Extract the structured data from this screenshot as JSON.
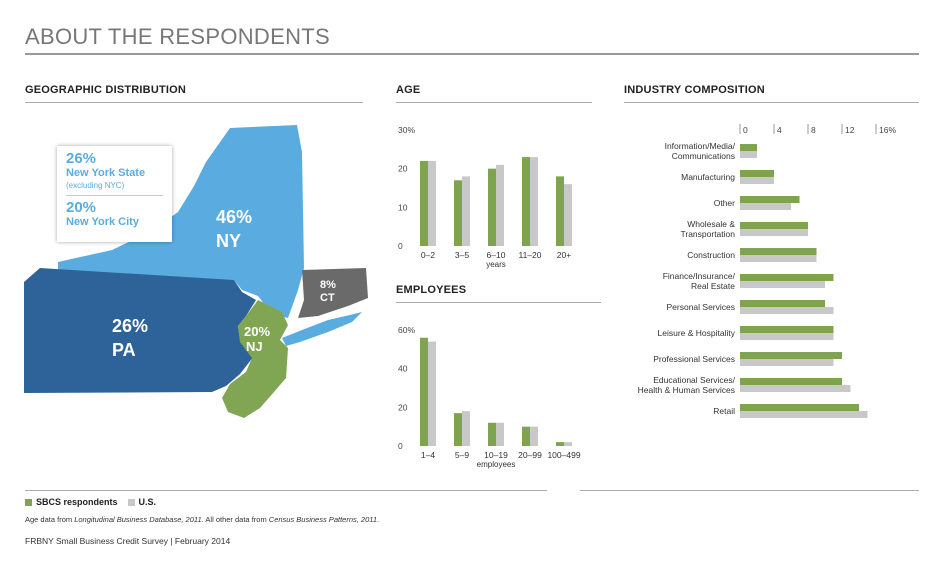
{
  "page_title": "ABOUT THE RESPONDENTS",
  "sections": {
    "geo": "GEOGRAPHIC DISTRIBUTION",
    "age": "AGE",
    "employees": "EMPLOYEES",
    "industry": "INDUSTRY COMPOSITION"
  },
  "colors": {
    "sbcs": "#7fa34f",
    "us": "#c8c8c8",
    "ny": "#5aace0",
    "pa": "#2e6399",
    "nj": "#80a653",
    "ct": "#6a6a6a"
  },
  "map": {
    "callout": {
      "nys_pct": "26%",
      "nys_label": "New York State",
      "nys_sub": "(excluding NYC)",
      "nyc_pct": "20%",
      "nyc_label": "New York City"
    },
    "states": [
      {
        "abbr": "NY",
        "pct": "46%"
      },
      {
        "abbr": "PA",
        "pct": "26%"
      },
      {
        "abbr": "NJ",
        "pct": "20%"
      },
      {
        "abbr": "CT",
        "pct": "8%"
      }
    ]
  },
  "chart_data": [
    {
      "id": "age",
      "type": "bar",
      "categories": [
        "0–2",
        "3–5",
        "6–10",
        "11–20",
        "20+"
      ],
      "xlabel": "years",
      "tick_labels": [
        "0",
        "10",
        "20",
        "30%"
      ],
      "ylim": [
        0,
        30
      ],
      "series": [
        {
          "name": "SBCS respondents",
          "values": [
            22,
            17,
            20,
            23,
            18
          ]
        },
        {
          "name": "U.S.",
          "values": [
            22,
            18,
            21,
            23,
            16
          ]
        }
      ]
    },
    {
      "id": "employees",
      "type": "bar",
      "categories": [
        "1–4",
        "5–9",
        "10–19",
        "20–99",
        "100–499"
      ],
      "xlabel": "employees",
      "tick_labels": [
        "0",
        "20",
        "40",
        "60%"
      ],
      "ylim": [
        0,
        60
      ],
      "series": [
        {
          "name": "SBCS respondents",
          "values": [
            56,
            17,
            12,
            10,
            2
          ]
        },
        {
          "name": "U.S.",
          "values": [
            54,
            18,
            12,
            10,
            2
          ]
        }
      ]
    },
    {
      "id": "industry",
      "type": "bar",
      "orientation": "horizontal",
      "categories": [
        "Information/Media/\nCommunications",
        "Manufacturing",
        "Other",
        "Wholesale &\nTransportation",
        "Construction",
        "Finance/Insurance/\nReal Estate",
        "Personal Services",
        "Leisure & Hospitality",
        "Professional Services",
        "Educational Services/\nHealth & Human Services",
        "Retail"
      ],
      "tick_labels": [
        "0",
        "4",
        "8",
        "12",
        "16%"
      ],
      "xlim": [
        0,
        16
      ],
      "series": [
        {
          "name": "SBCS respondents",
          "values": [
            2,
            4,
            7,
            8,
            9,
            11,
            10,
            11,
            12,
            12,
            14
          ]
        },
        {
          "name": "U.S.",
          "values": [
            2,
            4,
            6,
            8,
            9,
            10,
            11,
            11,
            11,
            13,
            15
          ]
        }
      ]
    }
  ],
  "legend": {
    "sbcs": "SBCS respondents",
    "us": "U.S."
  },
  "note": {
    "p1": "Age data from ",
    "i1": "Longitudinal Business Database, 2011",
    "p2": ". All other data from ",
    "i2": "Census Business Patterns, 2011",
    "p3": "."
  },
  "footer": "FRBNY Small Business Credit Survey  |  February 2014"
}
